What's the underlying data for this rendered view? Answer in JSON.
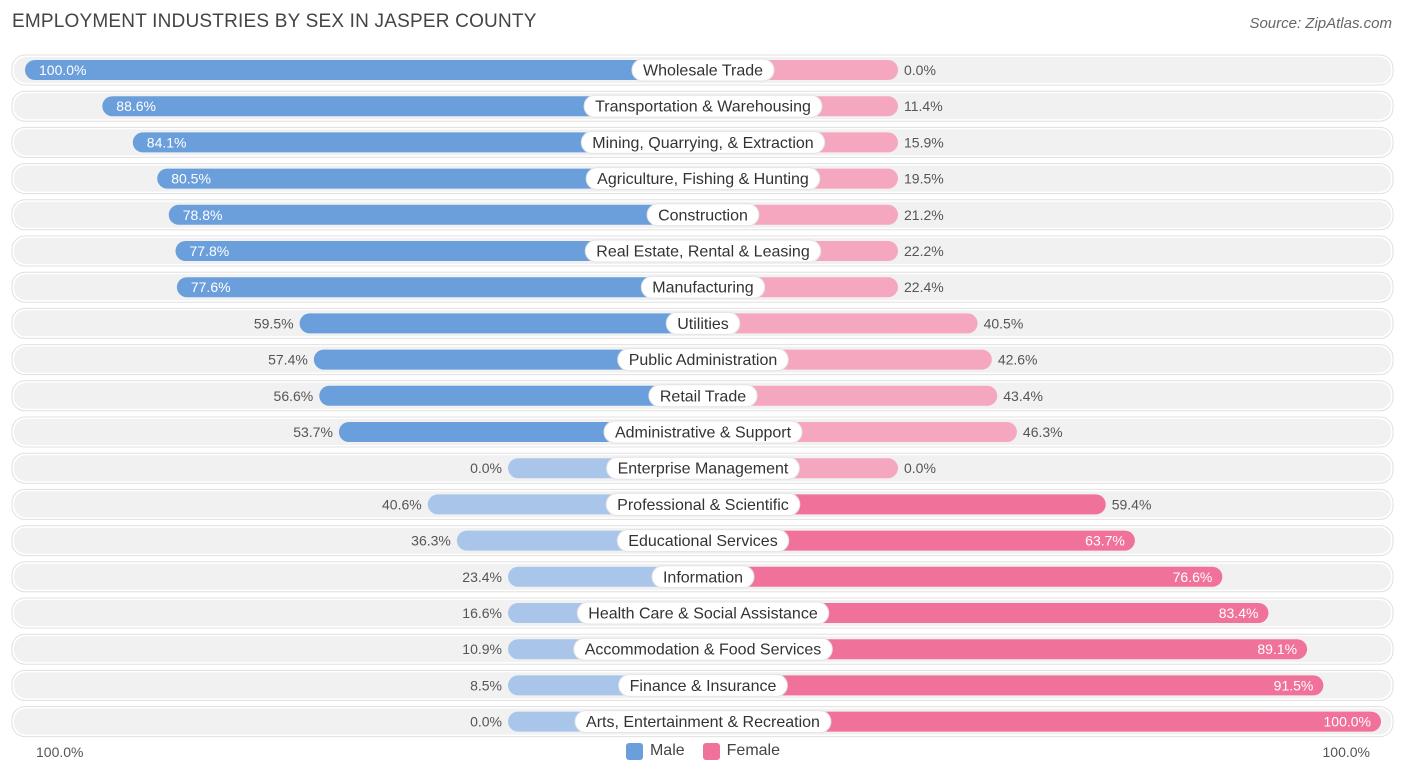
{
  "chart_data": {
    "type": "bar",
    "orientation": "horizontal-diverging",
    "title": "EMPLOYMENT INDUSTRIES BY SEX IN JASPER COUNTY",
    "source": "Source: ZipAtlas.com",
    "categories": [
      "Wholesale Trade",
      "Transportation & Warehousing",
      "Mining, Quarrying, & Extraction",
      "Agriculture, Fishing & Hunting",
      "Construction",
      "Real Estate, Rental & Leasing",
      "Manufacturing",
      "Utilities",
      "Public Administration",
      "Retail Trade",
      "Administrative & Support",
      "Enterprise Management",
      "Professional & Scientific",
      "Educational Services",
      "Information",
      "Health Care & Social Assistance",
      "Accommodation & Food Services",
      "Finance & Insurance",
      "Arts, Entertainment & Recreation"
    ],
    "series": [
      {
        "name": "Male",
        "values": [
          100.0,
          88.6,
          84.1,
          80.5,
          78.8,
          77.8,
          77.6,
          59.5,
          57.4,
          56.6,
          53.7,
          0.0,
          40.6,
          36.3,
          23.4,
          16.6,
          10.9,
          8.5,
          0.0
        ],
        "labels": [
          "100.0%",
          "88.6%",
          "84.1%",
          "80.5%",
          "78.8%",
          "77.8%",
          "77.6%",
          "59.5%",
          "57.4%",
          "56.6%",
          "53.7%",
          "0.0%",
          "40.6%",
          "36.3%",
          "23.4%",
          "16.6%",
          "10.9%",
          "8.5%",
          "0.0%"
        ]
      },
      {
        "name": "Female",
        "values": [
          0.0,
          11.4,
          15.9,
          19.5,
          21.2,
          22.2,
          22.4,
          40.5,
          42.6,
          43.4,
          46.3,
          0.0,
          59.4,
          63.7,
          76.6,
          83.4,
          89.1,
          91.5,
          100.0
        ],
        "labels": [
          "0.0%",
          "11.4%",
          "15.9%",
          "19.5%",
          "21.2%",
          "22.2%",
          "22.4%",
          "40.5%",
          "42.6%",
          "43.4%",
          "46.3%",
          "0.0%",
          "59.4%",
          "63.7%",
          "76.6%",
          "83.4%",
          "89.1%",
          "91.5%",
          "100.0%"
        ]
      }
    ],
    "axis": {
      "left_label": "100.0%",
      "right_label": "100.0%",
      "range": [
        0,
        100
      ]
    },
    "legend": {
      "position": "bottom-center",
      "entries": [
        "Male",
        "Female"
      ]
    },
    "colors": {
      "male_strong": "#6a9fdc",
      "male_light": "#a9c6ea",
      "female_strong": "#f0729a",
      "female_light": "#f5a7c0",
      "row_bg": "#f1f1f1",
      "row_border": "#e0e0e0"
    }
  }
}
